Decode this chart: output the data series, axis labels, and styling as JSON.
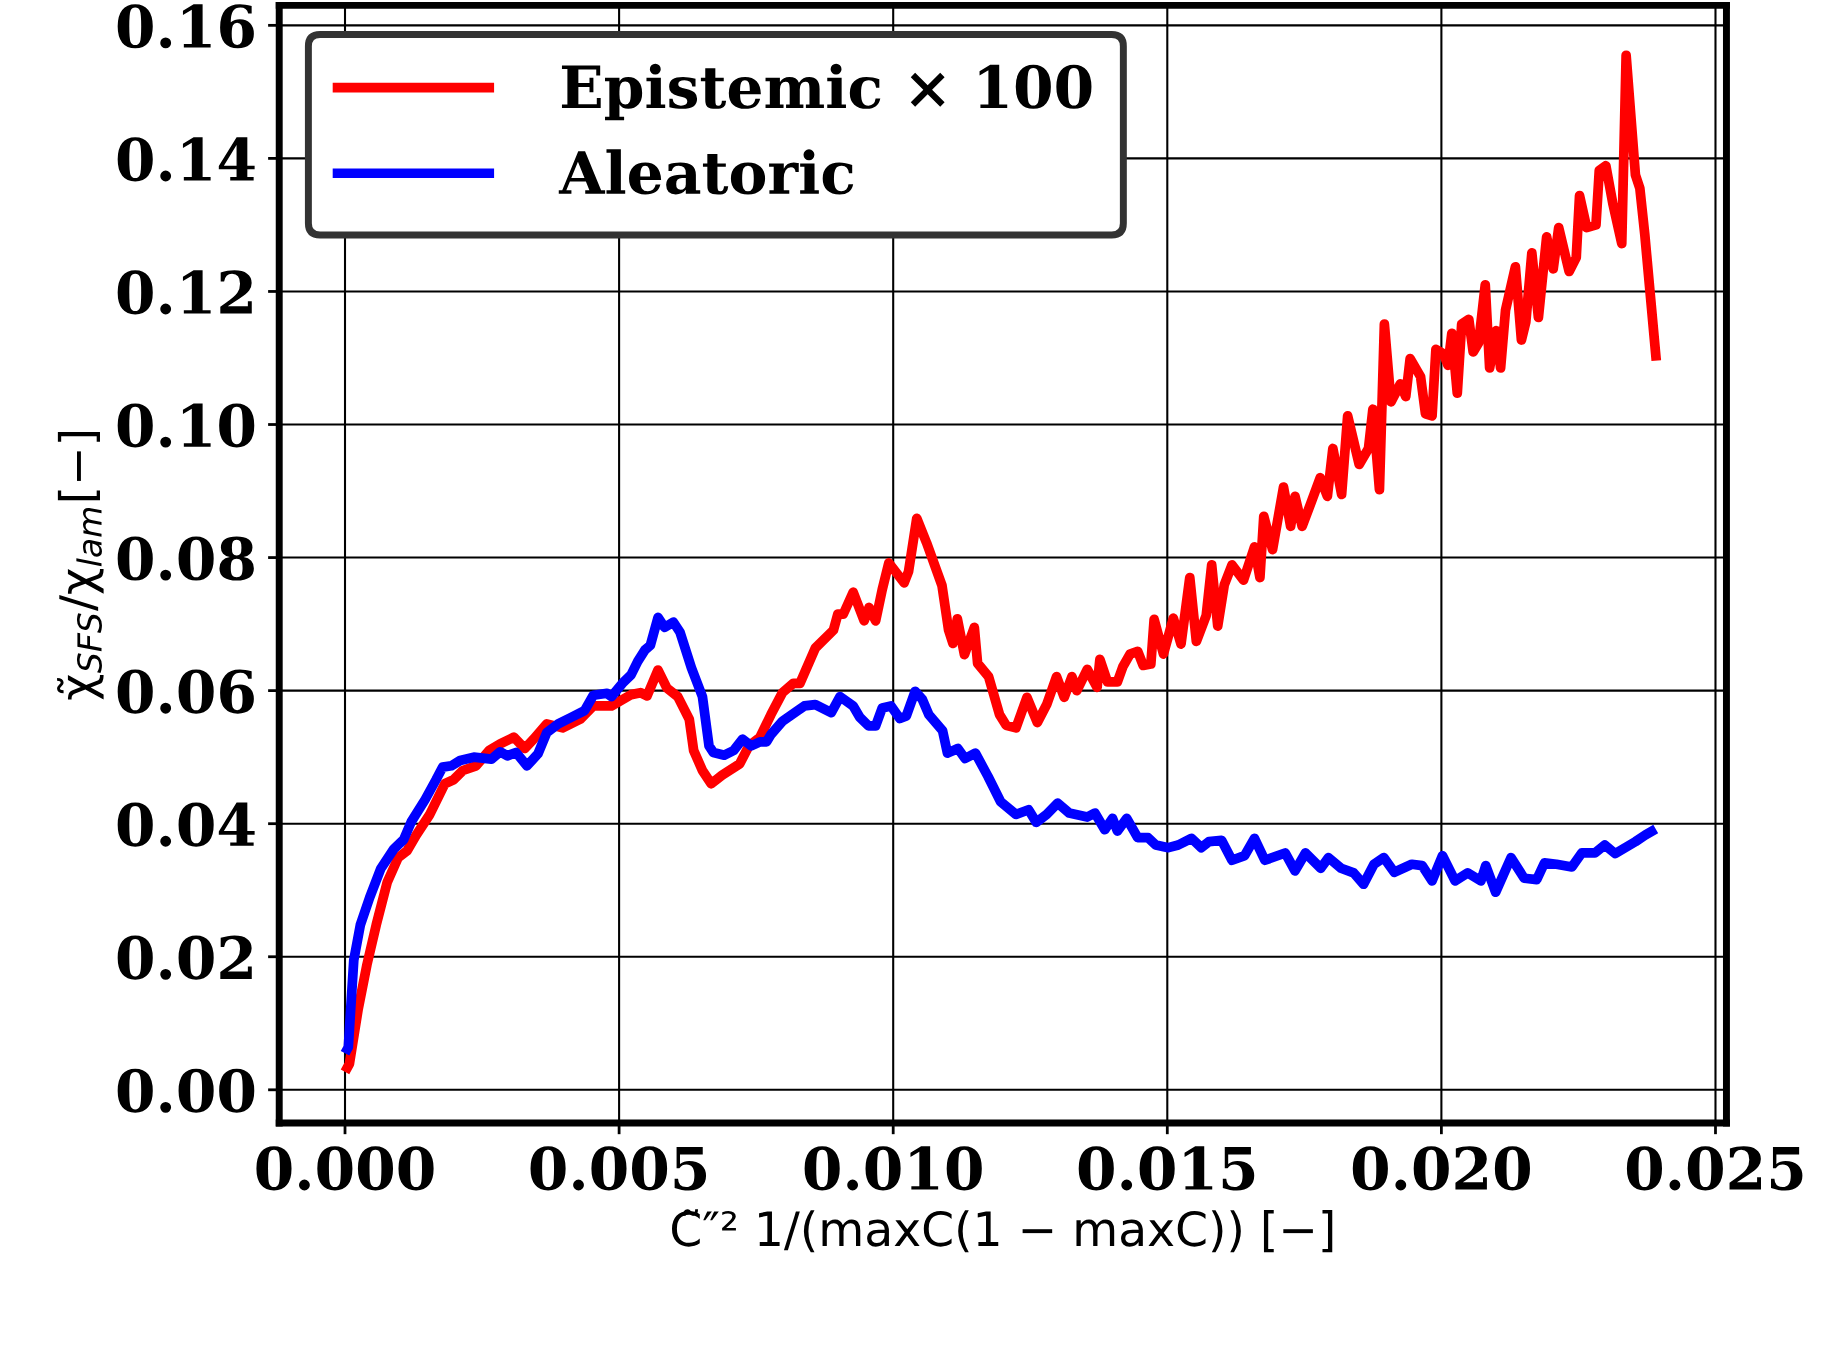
{
  "chart_data": {
    "type": "line",
    "xlabel": "C̃″² 1/(maxC(1 − maxC)) [−]",
    "ylabel": "χ̃$_{SFS}$/χ$_{lam}$[−]",
    "xlim": [
      -0.0012,
      0.0252
    ],
    "xticks": [
      {
        "value": 0,
        "label": "0.000"
      },
      {
        "value": 0.005,
        "label": "0.005"
      },
      {
        "value": 0.01,
        "label": "0.010"
      },
      {
        "value": 0.015,
        "label": "0.015"
      },
      {
        "value": 0.02,
        "label": "0.020"
      },
      {
        "value": 0.025,
        "label": "0.025"
      }
    ],
    "ylim": [
      -0.005,
      0.163
    ],
    "yticks": [
      {
        "value": 0,
        "label": "0.00"
      },
      {
        "value": 0.02,
        "label": "0.02"
      },
      {
        "value": 0.04,
        "label": "0.04"
      },
      {
        "value": 0.06,
        "label": "0.06"
      },
      {
        "value": 0.08,
        "label": "0.08"
      },
      {
        "value": 0.1,
        "label": "0.10"
      },
      {
        "value": 0.12,
        "label": "0.12"
      },
      {
        "value": 0.14,
        "label": "0.14"
      },
      {
        "value": 0.16,
        "label": "0.16"
      }
    ],
    "grid": true,
    "legend": "top left",
    "marker": "none",
    "line_style": "solid",
    "series": [
      {
        "name": "Epistemic × 100",
        "color": "#ff0000",
        "x": [
          0.0,
          8e-05,
          0.00024,
          0.0004,
          0.00057,
          0.00077,
          0.00097,
          0.00113,
          0.0013,
          0.00154,
          0.00182,
          0.00198,
          0.00215,
          0.00239,
          0.00263,
          0.00283,
          0.00308,
          0.00328,
          0.00344,
          0.00368,
          0.00397,
          0.00429,
          0.00453,
          0.00486,
          0.00522,
          0.00539,
          0.00551,
          0.00571,
          0.00587,
          0.00607,
          0.00628,
          0.00636,
          0.00652,
          0.00668,
          0.00688,
          0.0072,
          0.00737,
          0.00757,
          0.00777,
          0.00798,
          0.00818,
          0.0083,
          0.00858,
          0.00891,
          0.00899,
          0.00909,
          0.00927,
          0.00947,
          0.00956,
          0.00968,
          0.0098,
          0.00992,
          0.0102,
          0.01028,
          0.01043,
          0.01061,
          0.01089,
          0.01101,
          0.01109,
          0.01117,
          0.0113,
          0.01148,
          0.01154,
          0.01174,
          0.01194,
          0.01206,
          0.01224,
          0.01244,
          0.01263,
          0.0128,
          0.01298,
          0.01312,
          0.01326,
          0.01335,
          0.01354,
          0.01372,
          0.01377,
          0.01391,
          0.01409,
          0.01419,
          0.01432,
          0.01446,
          0.01456,
          0.0147,
          0.01476,
          0.01493,
          0.01511,
          0.01525,
          0.01541,
          0.01553,
          0.01571,
          0.01581,
          0.01592,
          0.01604,
          0.01618,
          0.01639,
          0.01659,
          0.01669,
          0.01676,
          0.01692,
          0.01712,
          0.01725,
          0.01733,
          0.01746,
          0.01762,
          0.01779,
          0.01792,
          0.01802,
          0.01818,
          0.01829,
          0.0185,
          0.01867,
          0.01875,
          0.01887,
          0.01896,
          0.01908,
          0.01925,
          0.01935,
          0.01943,
          0.01962,
          0.01971,
          0.01983,
          0.0199,
          0.02004,
          0.02012,
          0.02019,
          0.02029,
          0.02037,
          0.0205,
          0.02058,
          0.02068,
          0.0208,
          0.02088,
          0.021,
          0.02108,
          0.02117,
          0.02135,
          0.02146,
          0.02154,
          0.02165,
          0.02177,
          0.02192,
          0.02204,
          0.02214,
          0.02233,
          0.02246,
          0.02252,
          0.02265,
          0.02282,
          0.02288,
          0.023,
          0.02313,
          0.02329,
          0.02337,
          0.02354,
          0.02362,
          0.02371,
          0.02392
        ],
        "values": [
          0.0027,
          0.0039,
          0.0121,
          0.0188,
          0.0248,
          0.0312,
          0.0349,
          0.0359,
          0.0383,
          0.0413,
          0.046,
          0.0466,
          0.048,
          0.0487,
          0.051,
          0.052,
          0.053,
          0.0513,
          0.0527,
          0.055,
          0.0544,
          0.0557,
          0.0577,
          0.0577,
          0.0594,
          0.0597,
          0.0592,
          0.0631,
          0.0604,
          0.0591,
          0.0557,
          0.051,
          0.048,
          0.046,
          0.0473,
          0.049,
          0.0517,
          0.053,
          0.0564,
          0.0597,
          0.0611,
          0.0611,
          0.0664,
          0.0691,
          0.0715,
          0.0715,
          0.0748,
          0.0705,
          0.0725,
          0.0705,
          0.0752,
          0.0792,
          0.0762,
          0.0779,
          0.0859,
          0.0822,
          0.0758,
          0.0691,
          0.0671,
          0.0708,
          0.0654,
          0.0695,
          0.0641,
          0.0621,
          0.0564,
          0.0548,
          0.0544,
          0.059,
          0.0552,
          0.0579,
          0.0621,
          0.059,
          0.0621,
          0.06,
          0.0632,
          0.0605,
          0.0647,
          0.0613,
          0.0613,
          0.0636,
          0.0655,
          0.0659,
          0.0638,
          0.064,
          0.0707,
          0.0655,
          0.0709,
          0.067,
          0.077,
          0.0674,
          0.0713,
          0.0789,
          0.0697,
          0.0759,
          0.0789,
          0.0766,
          0.0816,
          0.077,
          0.0862,
          0.0812,
          0.0906,
          0.0847,
          0.0892,
          0.0847,
          0.0882,
          0.092,
          0.0892,
          0.0964,
          0.0895,
          0.1013,
          0.094,
          0.0964,
          0.1023,
          0.0902,
          0.1151,
          0.1034,
          0.1061,
          0.1042,
          0.1099,
          0.1072,
          0.1016,
          0.1013,
          0.1113,
          0.1106,
          0.1089,
          0.1137,
          0.1047,
          0.1151,
          0.1158,
          0.1109,
          0.1123,
          0.121,
          0.1085,
          0.1141,
          0.1085,
          0.1172,
          0.1237,
          0.1127,
          0.1154,
          0.1258,
          0.1161,
          0.1282,
          0.1234,
          0.1296,
          0.123,
          0.1251,
          0.1344,
          0.1296,
          0.13,
          0.1382,
          0.1389,
          0.1331,
          0.1272,
          0.1555,
          0.1375,
          0.1355,
          0.1286,
          0.1096
        ]
      },
      {
        "name": "Aleatoric",
        "color": "#0000ff",
        "x": [
          0.0,
          6e-05,
          0.00016,
          0.00028,
          0.00045,
          0.00065,
          0.00089,
          0.00107,
          0.00121,
          0.00146,
          0.00166,
          0.00178,
          0.00194,
          0.0021,
          0.00235,
          0.00267,
          0.00283,
          0.00296,
          0.00312,
          0.00332,
          0.00352,
          0.00368,
          0.00389,
          0.00413,
          0.00437,
          0.00453,
          0.00478,
          0.00486,
          0.00506,
          0.00522,
          0.00534,
          0.00547,
          0.00557,
          0.00571,
          0.00583,
          0.00599,
          0.00611,
          0.00632,
          0.00652,
          0.00664,
          0.00672,
          0.00692,
          0.00709,
          0.00725,
          0.00741,
          0.00757,
          0.00769,
          0.00777,
          0.00798,
          0.00826,
          0.00838,
          0.00858,
          0.00887,
          0.00903,
          0.00927,
          0.00939,
          0.00955,
          0.00968,
          0.0098,
          0.00996,
          0.01012,
          0.01024,
          0.0104,
          0.01053,
          0.01065,
          0.0109,
          0.01099,
          0.01118,
          0.01131,
          0.0115,
          0.01173,
          0.01196,
          0.01224,
          0.01247,
          0.01261,
          0.0128,
          0.013,
          0.01321,
          0.01354,
          0.01368,
          0.01386,
          0.014,
          0.01409,
          0.01426,
          0.01446,
          0.01465,
          0.01479,
          0.01502,
          0.0152,
          0.01544,
          0.01562,
          0.01576,
          0.01599,
          0.01618,
          0.01641,
          0.01659,
          0.01678,
          0.01715,
          0.01733,
          0.01752,
          0.0178,
          0.01794,
          0.01817,
          0.0184,
          0.01858,
          0.01877,
          0.01895,
          0.01914,
          0.01946,
          0.01965,
          0.01983,
          0.02002,
          0.02025,
          0.02048,
          0.02072,
          0.02081,
          0.02099,
          0.02127,
          0.02151,
          0.02174,
          0.02188,
          0.0221,
          0.02238,
          0.02256,
          0.0228,
          0.02298,
          0.02317,
          0.02354,
          0.02372,
          0.02391
        ],
        "values": [
          0.0055,
          0.0064,
          0.0195,
          0.0248,
          0.0289,
          0.0332,
          0.0362,
          0.0376,
          0.0403,
          0.0436,
          0.0466,
          0.0485,
          0.0487,
          0.0495,
          0.05,
          0.0497,
          0.0508,
          0.0502,
          0.0507,
          0.0487,
          0.0505,
          0.0537,
          0.055,
          0.056,
          0.057,
          0.0593,
          0.0596,
          0.0591,
          0.0611,
          0.0624,
          0.0644,
          0.0661,
          0.0668,
          0.071,
          0.0695,
          0.0703,
          0.0688,
          0.0634,
          0.0591,
          0.0517,
          0.0507,
          0.0503,
          0.051,
          0.0527,
          0.0517,
          0.0523,
          0.0523,
          0.0534,
          0.0554,
          0.057,
          0.0577,
          0.0579,
          0.0567,
          0.0591,
          0.0577,
          0.056,
          0.0547,
          0.0547,
          0.0574,
          0.0577,
          0.0558,
          0.0562,
          0.0599,
          0.0587,
          0.0564,
          0.054,
          0.0506,
          0.0513,
          0.0498,
          0.0506,
          0.0471,
          0.0433,
          0.0414,
          0.0421,
          0.0402,
          0.0414,
          0.0431,
          0.0416,
          0.041,
          0.0416,
          0.0391,
          0.0408,
          0.0389,
          0.0408,
          0.0379,
          0.0379,
          0.0368,
          0.0364,
          0.0368,
          0.0378,
          0.0364,
          0.0373,
          0.0375,
          0.0345,
          0.0352,
          0.0378,
          0.0345,
          0.0356,
          0.0329,
          0.0356,
          0.0333,
          0.0349,
          0.0333,
          0.0326,
          0.0309,
          0.0339,
          0.0349,
          0.0327,
          0.0339,
          0.0337,
          0.0314,
          0.0352,
          0.0314,
          0.0326,
          0.0314,
          0.0337,
          0.0297,
          0.0349,
          0.0318,
          0.0316,
          0.0341,
          0.0339,
          0.0335,
          0.0356,
          0.0356,
          0.0368,
          0.0355,
          0.0373,
          0.0383,
          0.0392
        ]
      }
    ]
  }
}
